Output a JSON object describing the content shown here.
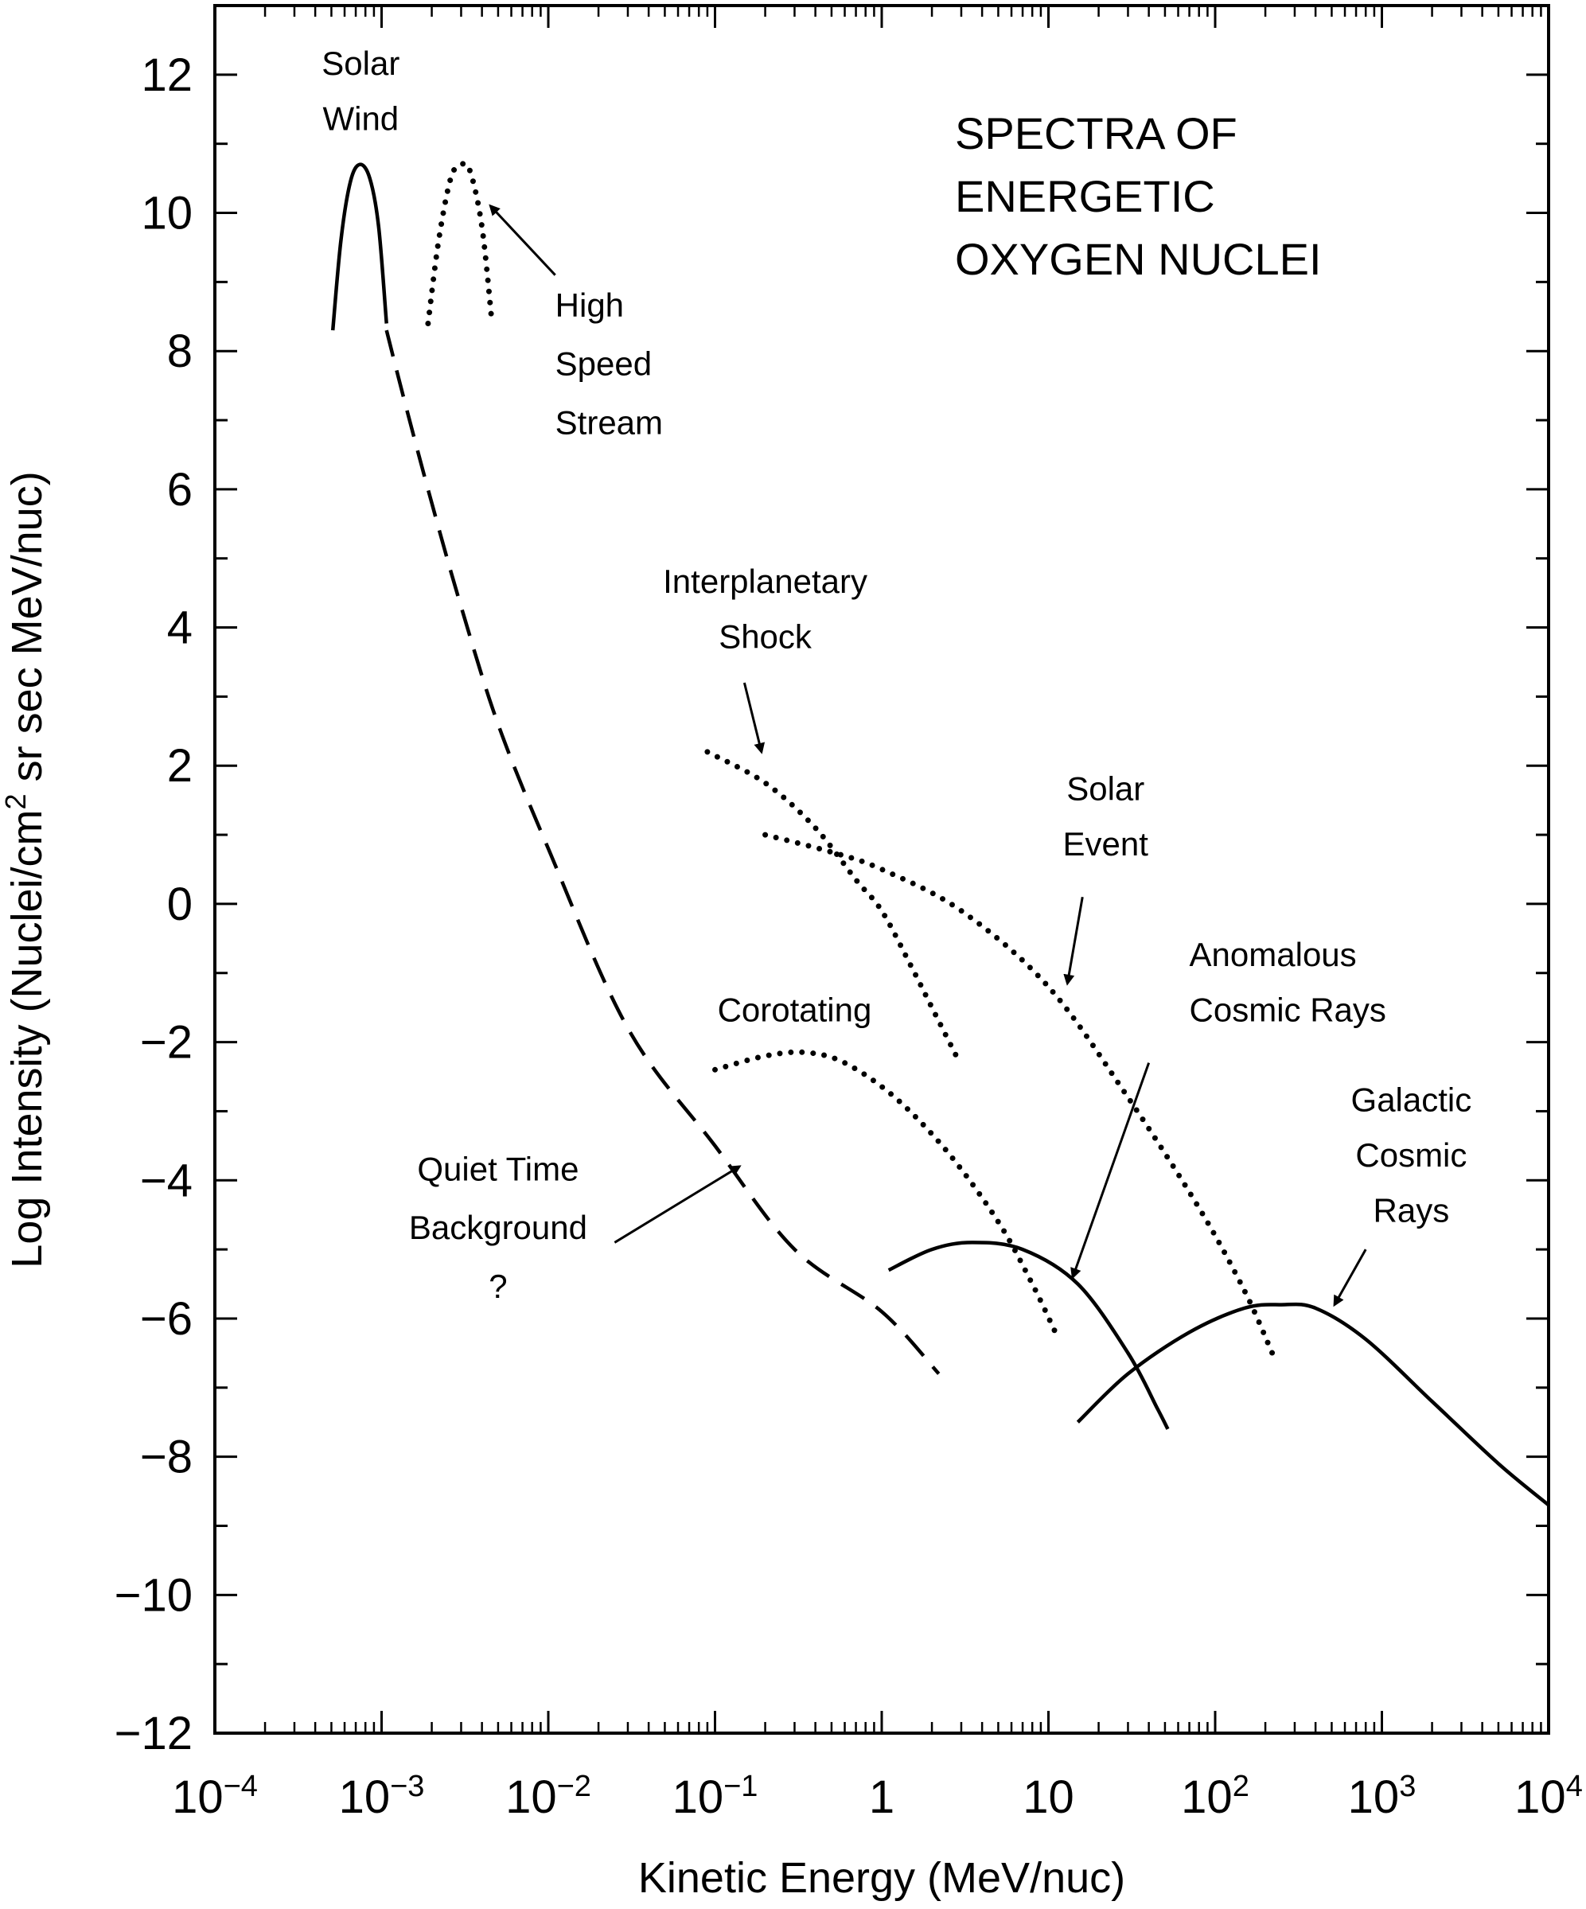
{
  "chart_data": {
    "type": "line",
    "title_lines": [
      "SPECTRA OF",
      "ENERGETIC",
      "OXYGEN NUCLEI"
    ],
    "xlabel": "Kinetic Energy (MeV/nuc)",
    "ylabel_parts": [
      "Log Intensity (Nuclei/cm",
      "2",
      " sr sec MeV/nuc)"
    ],
    "x_scale": "log",
    "xlim": [
      0.0001,
      10000
    ],
    "ylim": [
      -12,
      13
    ],
    "x_ticks": [
      {
        "value": 0.0001,
        "base": "10",
        "exp": "−4"
      },
      {
        "value": 0.001,
        "base": "10",
        "exp": "−3"
      },
      {
        "value": 0.01,
        "base": "10",
        "exp": "−2"
      },
      {
        "value": 0.1,
        "base": "10",
        "exp": "−1"
      },
      {
        "value": 1,
        "base": "1",
        "exp": ""
      },
      {
        "value": 10,
        "base": "10",
        "exp": ""
      },
      {
        "value": 100,
        "base": "10",
        "exp": "2"
      },
      {
        "value": 1000,
        "base": "10",
        "exp": "3"
      },
      {
        "value": 10000,
        "base": "10",
        "exp": "4"
      }
    ],
    "y_ticks": [
      {
        "value": 12,
        "label": "12"
      },
      {
        "value": 10,
        "label": "10"
      },
      {
        "value": 8,
        "label": "8"
      },
      {
        "value": 6,
        "label": "6"
      },
      {
        "value": 4,
        "label": "4"
      },
      {
        "value": 2,
        "label": "2"
      },
      {
        "value": 0,
        "label": "0"
      },
      {
        "value": -2,
        "label": "−2"
      },
      {
        "value": -4,
        "label": "−4"
      },
      {
        "value": -6,
        "label": "−6"
      },
      {
        "value": -8,
        "label": "−8"
      },
      {
        "value": -10,
        "label": "−10"
      },
      {
        "value": -12,
        "label": "−12"
      }
    ],
    "grid": false,
    "series": [
      {
        "id": "solar-wind",
        "style": "solid",
        "points": [
          [
            0.00051,
            8.3
          ],
          [
            0.00057,
            9.6
          ],
          [
            0.00065,
            10.45
          ],
          [
            0.00074,
            10.7
          ],
          [
            0.00085,
            10.5
          ],
          [
            0.00096,
            9.8
          ],
          [
            0.00107,
            8.4
          ]
        ]
      },
      {
        "id": "high-speed-stream",
        "style": "dotted",
        "points": [
          [
            0.0019,
            8.4
          ],
          [
            0.0022,
            9.6
          ],
          [
            0.0026,
            10.5
          ],
          [
            0.003,
            10.7
          ],
          [
            0.0034,
            10.6
          ],
          [
            0.004,
            9.8
          ],
          [
            0.0046,
            8.4
          ]
        ]
      },
      {
        "id": "quiet-time-background",
        "style": "dashed",
        "points": [
          [
            0.00107,
            8.3
          ],
          [
            0.0014,
            7.2
          ],
          [
            0.002,
            5.8
          ],
          [
            0.003,
            4.3
          ],
          [
            0.005,
            2.6
          ],
          [
            0.01,
            0.8
          ],
          [
            0.03,
            -1.8
          ],
          [
            0.1,
            -3.5
          ],
          [
            0.3,
            -5.0
          ],
          [
            1,
            -5.9
          ],
          [
            2.2,
            -6.8
          ]
        ]
      },
      {
        "id": "interplanetary-shock",
        "style": "dotted",
        "points": [
          [
            0.09,
            2.2
          ],
          [
            0.2,
            1.75
          ],
          [
            0.4,
            1.1
          ],
          [
            0.7,
            0.35
          ],
          [
            1.0,
            -0.1
          ],
          [
            1.5,
            -0.9
          ],
          [
            2.0,
            -1.5
          ],
          [
            2.8,
            -2.2
          ]
        ]
      },
      {
        "id": "solar-event",
        "style": "dotted",
        "points": [
          [
            0.2,
            1.0
          ],
          [
            0.5,
            0.75
          ],
          [
            1,
            0.5
          ],
          [
            3,
            -0.1
          ],
          [
            10,
            -1.2
          ],
          [
            30,
            -2.8
          ],
          [
            80,
            -4.4
          ],
          [
            150,
            -5.6
          ],
          [
            220,
            -6.5
          ]
        ]
      },
      {
        "id": "corotating",
        "style": "dotted",
        "points": [
          [
            0.1,
            -2.4
          ],
          [
            0.2,
            -2.2
          ],
          [
            0.35,
            -2.15
          ],
          [
            0.6,
            -2.3
          ],
          [
            1.2,
            -2.8
          ],
          [
            2.5,
            -3.6
          ],
          [
            5,
            -4.6
          ],
          [
            8,
            -5.5
          ],
          [
            11,
            -6.2
          ]
        ]
      },
      {
        "id": "anomalous-cosmic-rays",
        "style": "solid",
        "points": [
          [
            1.1,
            -5.3
          ],
          [
            2,
            -5.0
          ],
          [
            3.5,
            -4.9
          ],
          [
            7,
            -5.0
          ],
          [
            15,
            -5.5
          ],
          [
            30,
            -6.5
          ],
          [
            45,
            -7.3
          ],
          [
            52,
            -7.6
          ]
        ]
      },
      {
        "id": "galactic-cosmic-rays",
        "style": "solid",
        "points": [
          [
            15,
            -7.5
          ],
          [
            30,
            -6.8
          ],
          [
            70,
            -6.2
          ],
          [
            150,
            -5.85
          ],
          [
            250,
            -5.8
          ],
          [
            400,
            -5.85
          ],
          [
            800,
            -6.3
          ],
          [
            2000,
            -7.2
          ],
          [
            5000,
            -8.1
          ],
          [
            10000,
            -8.7
          ]
        ]
      }
    ],
    "annotations": [
      {
        "id": "solar-wind-label",
        "lines": [
          "Solar",
          "Wind"
        ],
        "x": 0.00075,
        "y": 12.0,
        "y_step": 0.8,
        "anchor": "middle"
      },
      {
        "id": "high-speed-stream-label",
        "lines": [
          "High",
          "Speed",
          "Stream"
        ],
        "x": 0.011,
        "y": 8.5,
        "y_step": 0.85,
        "anchor": "start",
        "arrow": {
          "from": [
            0.011,
            9.1
          ],
          "to": [
            0.0045,
            10.1
          ]
        }
      },
      {
        "id": "interplanetary-shock-label",
        "lines": [
          "Interplanetary",
          "Shock"
        ],
        "x": 0.2,
        "y": 4.5,
        "y_step": 0.8,
        "anchor": "middle",
        "arrow": {
          "from": [
            0.15,
            3.2
          ],
          "to": [
            0.19,
            2.2
          ]
        }
      },
      {
        "id": "solar-event-label",
        "lines": [
          "Solar",
          "Event"
        ],
        "x": 22,
        "y": 1.5,
        "y_step": 0.8,
        "anchor": "middle",
        "arrow": {
          "from": [
            16,
            0.1
          ],
          "to": [
            13,
            -1.15
          ]
        }
      },
      {
        "id": "corotating-label",
        "lines": [
          "Corotating"
        ],
        "x": 0.3,
        "y": -1.7,
        "y_step": 0.8,
        "anchor": "middle"
      },
      {
        "id": "quiet-time-background-label",
        "lines": [
          "Quiet Time",
          "Background",
          "?"
        ],
        "x": 0.005,
        "y": -4.0,
        "y_step": 0.85,
        "anchor": "middle",
        "arrow": {
          "from": [
            0.025,
            -4.9
          ],
          "to": [
            0.14,
            -3.8
          ]
        }
      },
      {
        "id": "anomalous-cosmic-rays-label",
        "lines": [
          "Anomalous",
          "Cosmic Rays"
        ],
        "x": 70,
        "y": -0.9,
        "y_step": 0.8,
        "anchor": "start",
        "arrow": {
          "from": [
            40,
            -2.3
          ],
          "to": [
            14,
            -5.4
          ]
        }
      },
      {
        "id": "galactic-cosmic-rays-label",
        "lines": [
          "Galactic",
          "Cosmic",
          "Rays"
        ],
        "x": 1500,
        "y": -3.0,
        "y_step": 0.8,
        "anchor": "middle",
        "arrow": {
          "from": [
            800,
            -5.0
          ],
          "to": [
            520,
            -5.8
          ]
        }
      }
    ]
  }
}
